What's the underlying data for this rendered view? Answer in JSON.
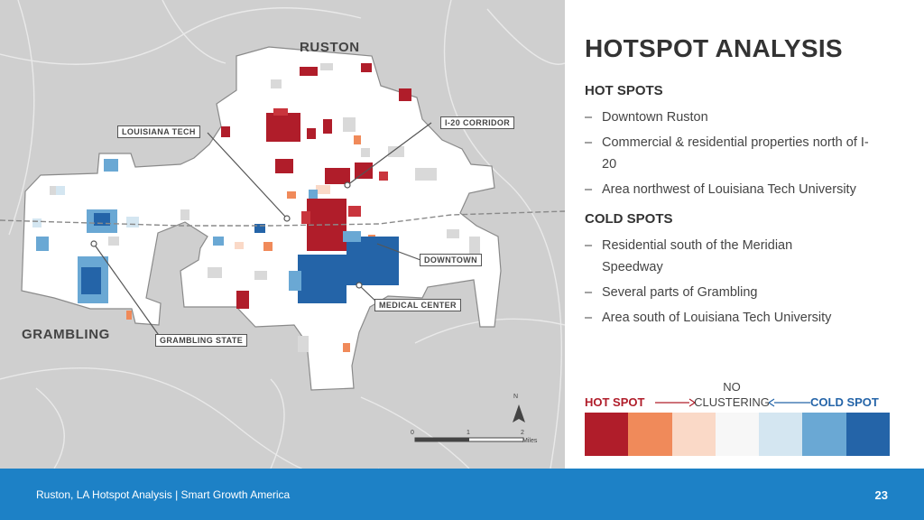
{
  "map": {
    "city_labels": {
      "ruston": "RUSTON",
      "grambling": "GRAMBLING"
    },
    "callouts": {
      "louisiana_tech": "LOUISIANA TECH",
      "i20_corridor": "I-20 CORRIDOR",
      "downtown": "DOWNTOWN",
      "medical_center": "MEDICAL CENTER",
      "grambling_state": "GRAMBLING STATE"
    },
    "north_label": "N",
    "scale": {
      "ticks": [
        "0",
        "1",
        "2"
      ],
      "unit": "Miles"
    }
  },
  "panel": {
    "title": "HOTSPOT ANALYSIS",
    "hot_heading": "HOT SPOTS",
    "hot_items": [
      "Downtown Ruston",
      "Commercial & residential properties north of I-20",
      "Area northwest of Louisiana Tech University"
    ],
    "cold_heading": "COLD SPOTS",
    "cold_items": [
      "Residential south of the Meridian Speedway",
      "Several parts of Grambling",
      "Area south of Louisiana Tech University"
    ],
    "dash": "–"
  },
  "legend": {
    "hot_label": "HOT SPOT",
    "no_label": "NO",
    "clustering_label": "CLUSTERING",
    "cold_label": "COLD SPOT",
    "colors": [
      "#b01d2a",
      "#f08a5a",
      "#fad9c7",
      "#f7f7f7",
      "#d4e6f1",
      "#6aa8d4",
      "#2464a8"
    ]
  },
  "footer": {
    "text": "Ruston, LA Hotspot Analysis | Smart Growth America",
    "page": "23"
  }
}
